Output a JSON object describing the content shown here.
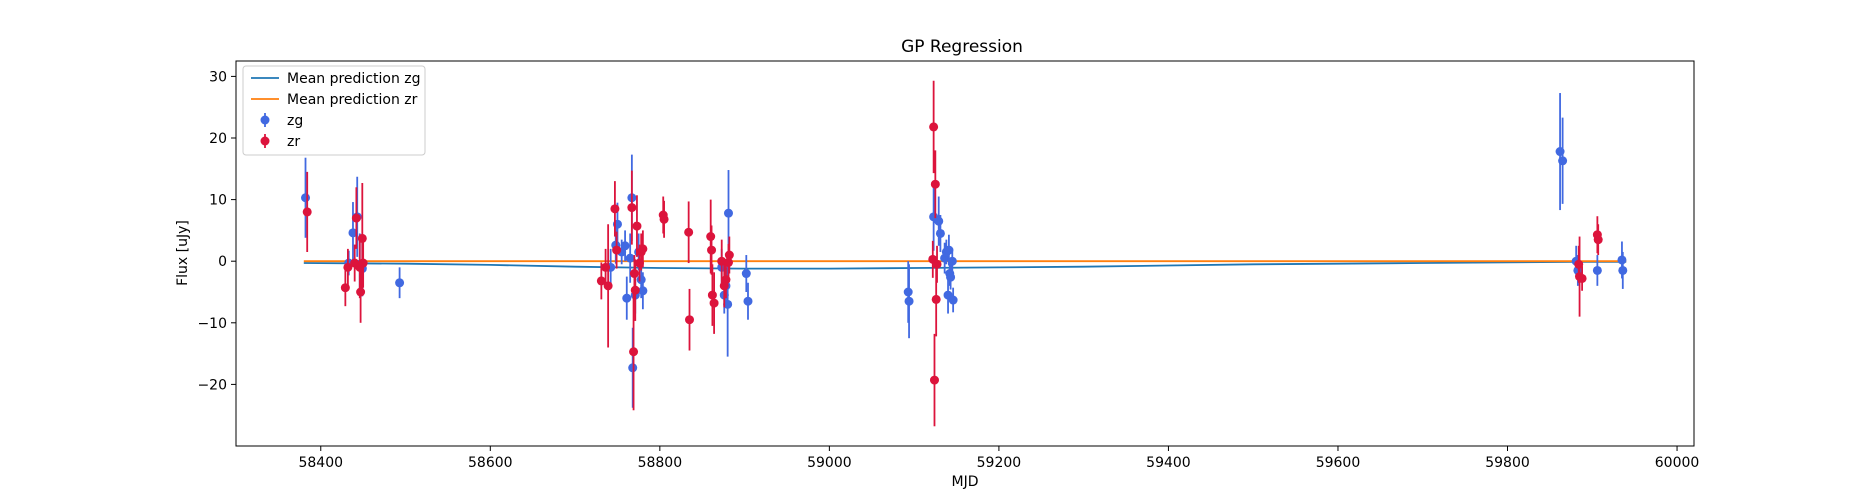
{
  "chart_data": {
    "type": "scatter",
    "title": "GP Regression",
    "xlabel": "MJD",
    "ylabel": "Flux [uJy]",
    "xlim": [
      58300,
      60020
    ],
    "ylim": [
      -30,
      32.5
    ],
    "xticks": [
      58400,
      58600,
      58800,
      59000,
      59200,
      59400,
      59600,
      59800,
      60000
    ],
    "yticks": [
      -20,
      -10,
      0,
      10,
      20,
      30
    ],
    "grid": false,
    "legend_position": "top-left",
    "lines": [
      {
        "name": "Mean prediction zg",
        "color": "#1f77b4",
        "x": [
          58380,
          58500,
          58600,
          58700,
          58800,
          58900,
          59000,
          59100,
          59200,
          59300,
          59400,
          59500,
          59600,
          59700,
          59800,
          59880,
          59940
        ],
        "y": [
          -0.3,
          -0.4,
          -0.6,
          -0.9,
          -1.1,
          -1.2,
          -1.2,
          -1.1,
          -1.0,
          -0.9,
          -0.7,
          -0.5,
          -0.4,
          -0.3,
          -0.2,
          -0.1,
          -0.1
        ]
      },
      {
        "name": "Mean prediction zr",
        "color": "#ff7f0e",
        "x": [
          58380,
          58600,
          58800,
          59000,
          59200,
          59400,
          59600,
          59800,
          59940
        ],
        "y": [
          0.0,
          0.0,
          0.0,
          0.0,
          0.0,
          0.0,
          0.0,
          0.0,
          0.0
        ]
      }
    ],
    "series": [
      {
        "name": "zg",
        "color": "#4169e1",
        "points": [
          {
            "x": 58382,
            "y": 10.3,
            "err": 6.5
          },
          {
            "x": 58433,
            "y": -0.3,
            "err": 2.0
          },
          {
            "x": 58438,
            "y": 4.6,
            "err": 5.0
          },
          {
            "x": 58443,
            "y": 7.2,
            "err": 6.5
          },
          {
            "x": 58446,
            "y": -0.5,
            "err": 5.0
          },
          {
            "x": 58449,
            "y": -1.2,
            "err": 4.5
          },
          {
            "x": 58493,
            "y": -3.5,
            "err": 2.5
          },
          {
            "x": 58742,
            "y": -1.0,
            "err": 3.0
          },
          {
            "x": 58748,
            "y": 2.6,
            "err": 3.0
          },
          {
            "x": 58750,
            "y": 6.0,
            "err": 3.5
          },
          {
            "x": 58755,
            "y": 1.5,
            "err": 2.0
          },
          {
            "x": 58759,
            "y": 2.5,
            "err": 2.5
          },
          {
            "x": 58761,
            "y": -6.0,
            "err": 3.5
          },
          {
            "x": 58765,
            "y": 0.5,
            "err": 4.0
          },
          {
            "x": 58767,
            "y": 10.3,
            "err": 7.0
          },
          {
            "x": 58768,
            "y": -17.3,
            "err": 6.5
          },
          {
            "x": 58771,
            "y": -5.5,
            "err": 3.0
          },
          {
            "x": 58775,
            "y": 1.5,
            "err": 3.0
          },
          {
            "x": 58778,
            "y": -3.0,
            "err": 3.0
          },
          {
            "x": 58780,
            "y": -4.8,
            "err": 3.0
          },
          {
            "x": 58873,
            "y": -1.0,
            "err": 3.0
          },
          {
            "x": 58876,
            "y": -5.5,
            "err": 3.0
          },
          {
            "x": 58878,
            "y": -4.0,
            "err": 3.0
          },
          {
            "x": 58880,
            "y": -7.0,
            "err": 8.5
          },
          {
            "x": 58881,
            "y": 7.8,
            "err": 7.0
          },
          {
            "x": 58902,
            "y": -2.0,
            "err": 3.0
          },
          {
            "x": 58904,
            "y": -6.5,
            "err": 3.0
          },
          {
            "x": 59093,
            "y": -5.0,
            "err": 5.0
          },
          {
            "x": 59094,
            "y": -6.5,
            "err": 6.0
          },
          {
            "x": 59123,
            "y": 7.2,
            "err": 5.5
          },
          {
            "x": 59129,
            "y": 6.5,
            "err": 4.0
          },
          {
            "x": 59131,
            "y": 4.5,
            "err": 3.0
          },
          {
            "x": 59136,
            "y": 0.5,
            "err": 2.5
          },
          {
            "x": 59138,
            "y": 1.5,
            "err": 2.0
          },
          {
            "x": 59140,
            "y": -5.5,
            "err": 3.0
          },
          {
            "x": 59141,
            "y": 1.8,
            "err": 2.5
          },
          {
            "x": 59142,
            "y": -2.0,
            "err": 2.0
          },
          {
            "x": 59143,
            "y": -2.6,
            "err": 2.0
          },
          {
            "x": 59145,
            "y": 0.0,
            "err": 2.0
          },
          {
            "x": 59146,
            "y": -6.3,
            "err": 2.0
          },
          {
            "x": 59862,
            "y": 17.8,
            "err": 9.5
          },
          {
            "x": 59865,
            "y": 16.3,
            "err": 7.0
          },
          {
            "x": 59881,
            "y": 0.0,
            "err": 2.5
          },
          {
            "x": 59883,
            "y": -1.5,
            "err": 2.5
          },
          {
            "x": 59906,
            "y": -1.5,
            "err": 2.5
          },
          {
            "x": 59935,
            "y": 0.2,
            "err": 3.0
          },
          {
            "x": 59936,
            "y": -1.5,
            "err": 3.0
          }
        ]
      },
      {
        "name": "zr",
        "color": "#dc143c",
        "points": [
          {
            "x": 58384,
            "y": 8.0,
            "err": 6.5
          },
          {
            "x": 58429,
            "y": -4.3,
            "err": 3.0
          },
          {
            "x": 58432,
            "y": -1.0,
            "err": 3.0
          },
          {
            "x": 58440,
            "y": -0.3,
            "err": 3.0
          },
          {
            "x": 58442,
            "y": 7.0,
            "err": 5.0
          },
          {
            "x": 58446,
            "y": -1.0,
            "err": 5.0
          },
          {
            "x": 58447,
            "y": -5.0,
            "err": 5.0
          },
          {
            "x": 58449,
            "y": 3.7,
            "err": 9.0
          },
          {
            "x": 58450,
            "y": -0.3,
            "err": 4.0
          },
          {
            "x": 58731,
            "y": -3.2,
            "err": 3.0
          },
          {
            "x": 58736,
            "y": -1.0,
            "err": 3.0
          },
          {
            "x": 58739,
            "y": -4.0,
            "err": 10.0
          },
          {
            "x": 58747,
            "y": 8.5,
            "err": 4.5
          },
          {
            "x": 58749,
            "y": 1.8,
            "err": 3.0
          },
          {
            "x": 58767,
            "y": 8.7,
            "err": 6.0
          },
          {
            "x": 58769,
            "y": -14.7,
            "err": 9.5
          },
          {
            "x": 58770,
            "y": -2.0,
            "err": 3.0
          },
          {
            "x": 58771,
            "y": -4.7,
            "err": 5.0
          },
          {
            "x": 58773,
            "y": 5.7,
            "err": 5.0
          },
          {
            "x": 58776,
            "y": -0.3,
            "err": 3.0
          },
          {
            "x": 58778,
            "y": 1.5,
            "err": 3.0
          },
          {
            "x": 58780,
            "y": 2.0,
            "err": 3.0
          },
          {
            "x": 58804,
            "y": 7.5,
            "err": 3.0
          },
          {
            "x": 58805,
            "y": 6.8,
            "err": 3.0
          },
          {
            "x": 58834,
            "y": 4.7,
            "err": 5.0
          },
          {
            "x": 58835,
            "y": -9.5,
            "err": 5.0
          },
          {
            "x": 58860,
            "y": 4.0,
            "err": 6.0
          },
          {
            "x": 58861,
            "y": 1.8,
            "err": 4.0
          },
          {
            "x": 58862,
            "y": -5.5,
            "err": 5.0
          },
          {
            "x": 58864,
            "y": -6.8,
            "err": 5.0
          },
          {
            "x": 58873,
            "y": 0.0,
            "err": 3.5
          },
          {
            "x": 58876,
            "y": -4.0,
            "err": 3.5
          },
          {
            "x": 58878,
            "y": -3.0,
            "err": 3.0
          },
          {
            "x": 58881,
            "y": -0.2,
            "err": 3.0
          },
          {
            "x": 58882,
            "y": 1.0,
            "err": 3.0
          },
          {
            "x": 59122,
            "y": 0.3,
            "err": 3.0
          },
          {
            "x": 59123,
            "y": 21.8,
            "err": 7.5
          },
          {
            "x": 59124,
            "y": -19.3,
            "err": 7.5
          },
          {
            "x": 59125,
            "y": 12.5,
            "err": 5.5
          },
          {
            "x": 59126,
            "y": -6.2,
            "err": 6.0
          },
          {
            "x": 59127,
            "y": -0.5,
            "err": 3.0
          },
          {
            "x": 59884,
            "y": -0.5,
            "err": 3.0
          },
          {
            "x": 59885,
            "y": -2.5,
            "err": 6.5
          },
          {
            "x": 59888,
            "y": -2.8,
            "err": 2.0
          },
          {
            "x": 59906,
            "y": 4.3,
            "err": 3.0
          },
          {
            "x": 59907,
            "y": 3.5,
            "err": 2.5
          }
        ]
      }
    ]
  }
}
